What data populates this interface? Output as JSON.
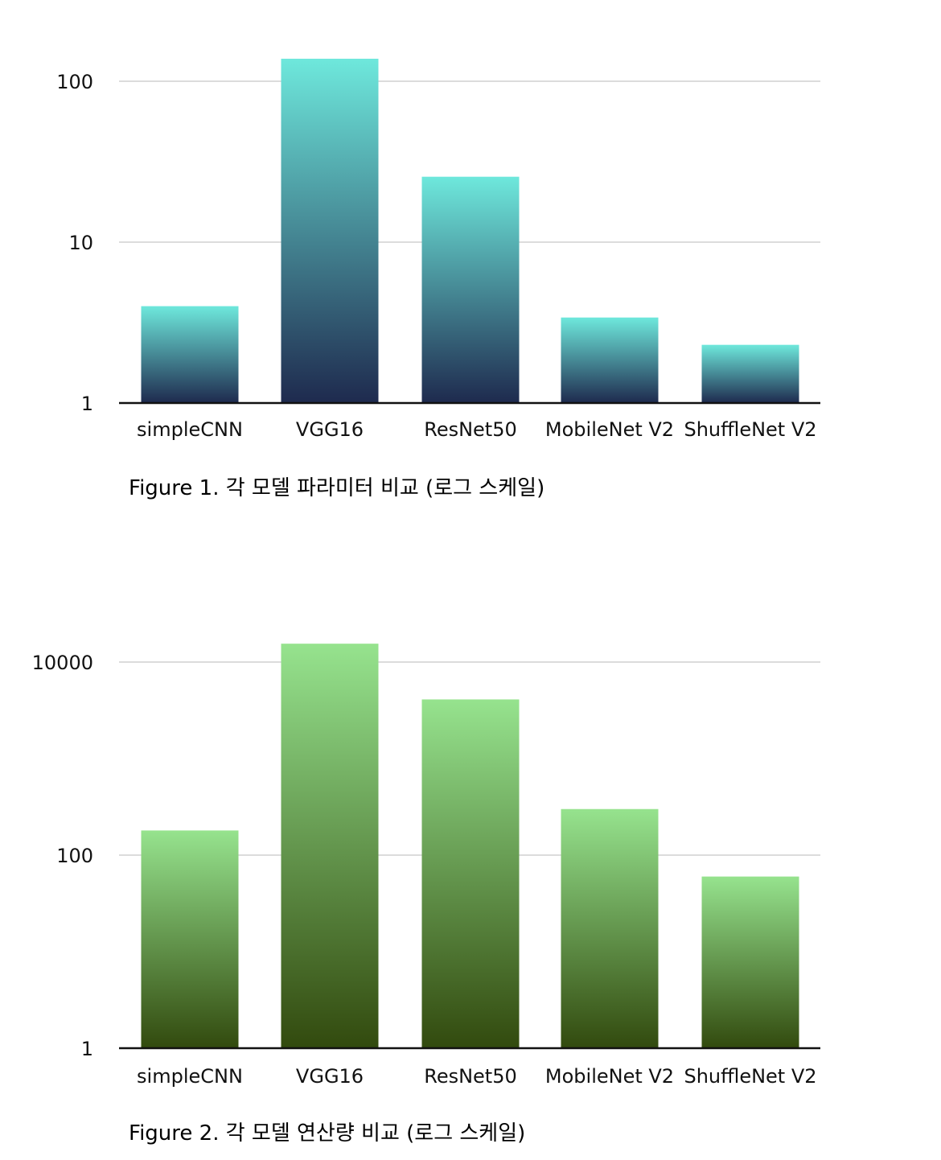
{
  "chart_data": [
    {
      "type": "bar",
      "title": "",
      "xlabel": "",
      "ylabel": "",
      "y_scale": "log",
      "ylim": [
        1,
        140
      ],
      "y_ticks": [
        "1",
        "10",
        "100"
      ],
      "grid": true,
      "categories": [
        "simpleCNN",
        "VGG16",
        "ResNet50",
        "MobileNet V2",
        "ShuffleNet V2"
      ],
      "values": [
        4.0,
        138,
        25.5,
        3.4,
        2.3
      ],
      "gradient": {
        "top": "#6EE8DC",
        "bottom": "#1E2A4E"
      },
      "caption": "Figure 1. 각 모델 파라미터 비교 (로그 스케일)"
    },
    {
      "type": "bar",
      "title": "",
      "xlabel": "",
      "ylabel": "",
      "y_scale": "log",
      "ylim": [
        1,
        15500
      ],
      "y_ticks": [
        "1",
        "100",
        "10000"
      ],
      "grid": true,
      "categories": [
        "simpleCNN",
        "VGG16",
        "ResNet50",
        "MobileNet V2",
        "ShuffleNet V2"
      ],
      "values": [
        180,
        15500,
        4100,
        300,
        60
      ],
      "gradient": {
        "top": "#96E38E",
        "bottom": "#324A0E"
      },
      "caption": "Figure 2. 각 모델 연산량 비교 (로그 스케일)"
    }
  ]
}
